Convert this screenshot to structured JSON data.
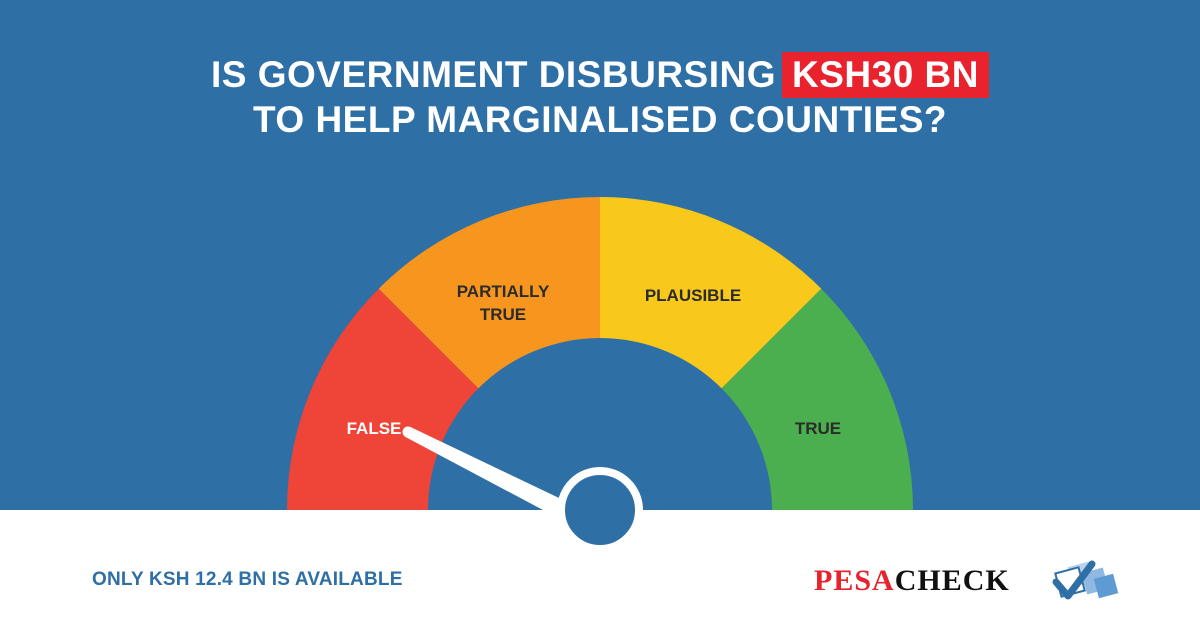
{
  "headline": {
    "line1_prefix": "IS GOVERNMENT DISBURSING",
    "line1_highlight": "KSH30 BN",
    "line2": "TO HELP MARGINALISED COUNTIES?"
  },
  "gauge": {
    "segments": [
      {
        "label": "FALSE",
        "color": "#ef4438"
      },
      {
        "label_line1": "PARTIALLY",
        "label_line2": "TRUE",
        "color": "#f6961f"
      },
      {
        "label": "PLAUSIBLE",
        "color": "#f8c81a"
      },
      {
        "label": "TRUE",
        "color": "#4caf4f"
      }
    ],
    "selected": "FALSE",
    "needle_color": "#ffffff",
    "hub_color": "#2e6fa6"
  },
  "note": "ONLY KSH 12.4 BN IS AVAILABLE",
  "logo": {
    "pesa": "PESA",
    "check": "CHECK"
  },
  "colors": {
    "background": "#2e6fa6",
    "highlight": "#e8232d",
    "footer": "#ffffff"
  }
}
